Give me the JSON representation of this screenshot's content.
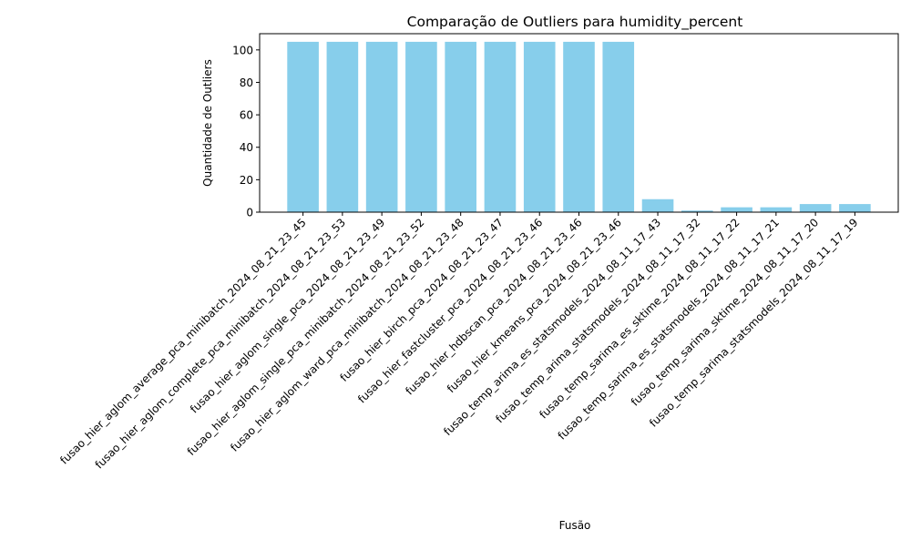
{
  "chart_data": {
    "type": "bar",
    "title": "Comparação de Outliers para humidity_percent",
    "xlabel": "Fusão",
    "ylabel": "Quantidade de Outliers",
    "ylim": [
      0,
      110
    ],
    "yticks": [
      0,
      20,
      40,
      60,
      80,
      100
    ],
    "grid": false,
    "bar_color": "#87ceeb",
    "categories": [
      "fusao_hier_aglom_average_pca_minibatch_2024_08_21_23_45",
      "fusao_hier_aglom_complete_pca_minibatch_2024_08_21_23_53",
      "fusao_hier_aglom_single_pca_2024_08_21_23_49",
      "fusao_hier_aglom_single_pca_minibatch_2024_08_21_23_52",
      "fusao_hier_aglom_ward_pca_minibatch_2024_08_21_23_48",
      "fusao_hier_birch_pca_2024_08_21_23_47",
      "fusao_hier_fastcluster_pca_2024_08_21_23_46",
      "fusao_hier_hdbscan_pca_2024_08_21_23_46",
      "fusao_hier_kmeans_pca_2024_08_21_23_46",
      "fusao_temp_arima_es_statsmodels_2024_08_11_17_43",
      "fusao_temp_arima_statsmodels_2024_08_11_17_32",
      "fusao_temp_sarima_es_sktime_2024_08_11_17_22",
      "fusao_temp_sarima_es_statsmodels_2024_08_11_17_21",
      "fusao_temp_sarima_sktime_2024_08_11_17_20",
      "fusao_temp_sarima_statsmodels_2024_08_11_17_19"
    ],
    "values": [
      105,
      105,
      105,
      105,
      105,
      105,
      105,
      105,
      105,
      8,
      1,
      3,
      3,
      5,
      5
    ]
  }
}
